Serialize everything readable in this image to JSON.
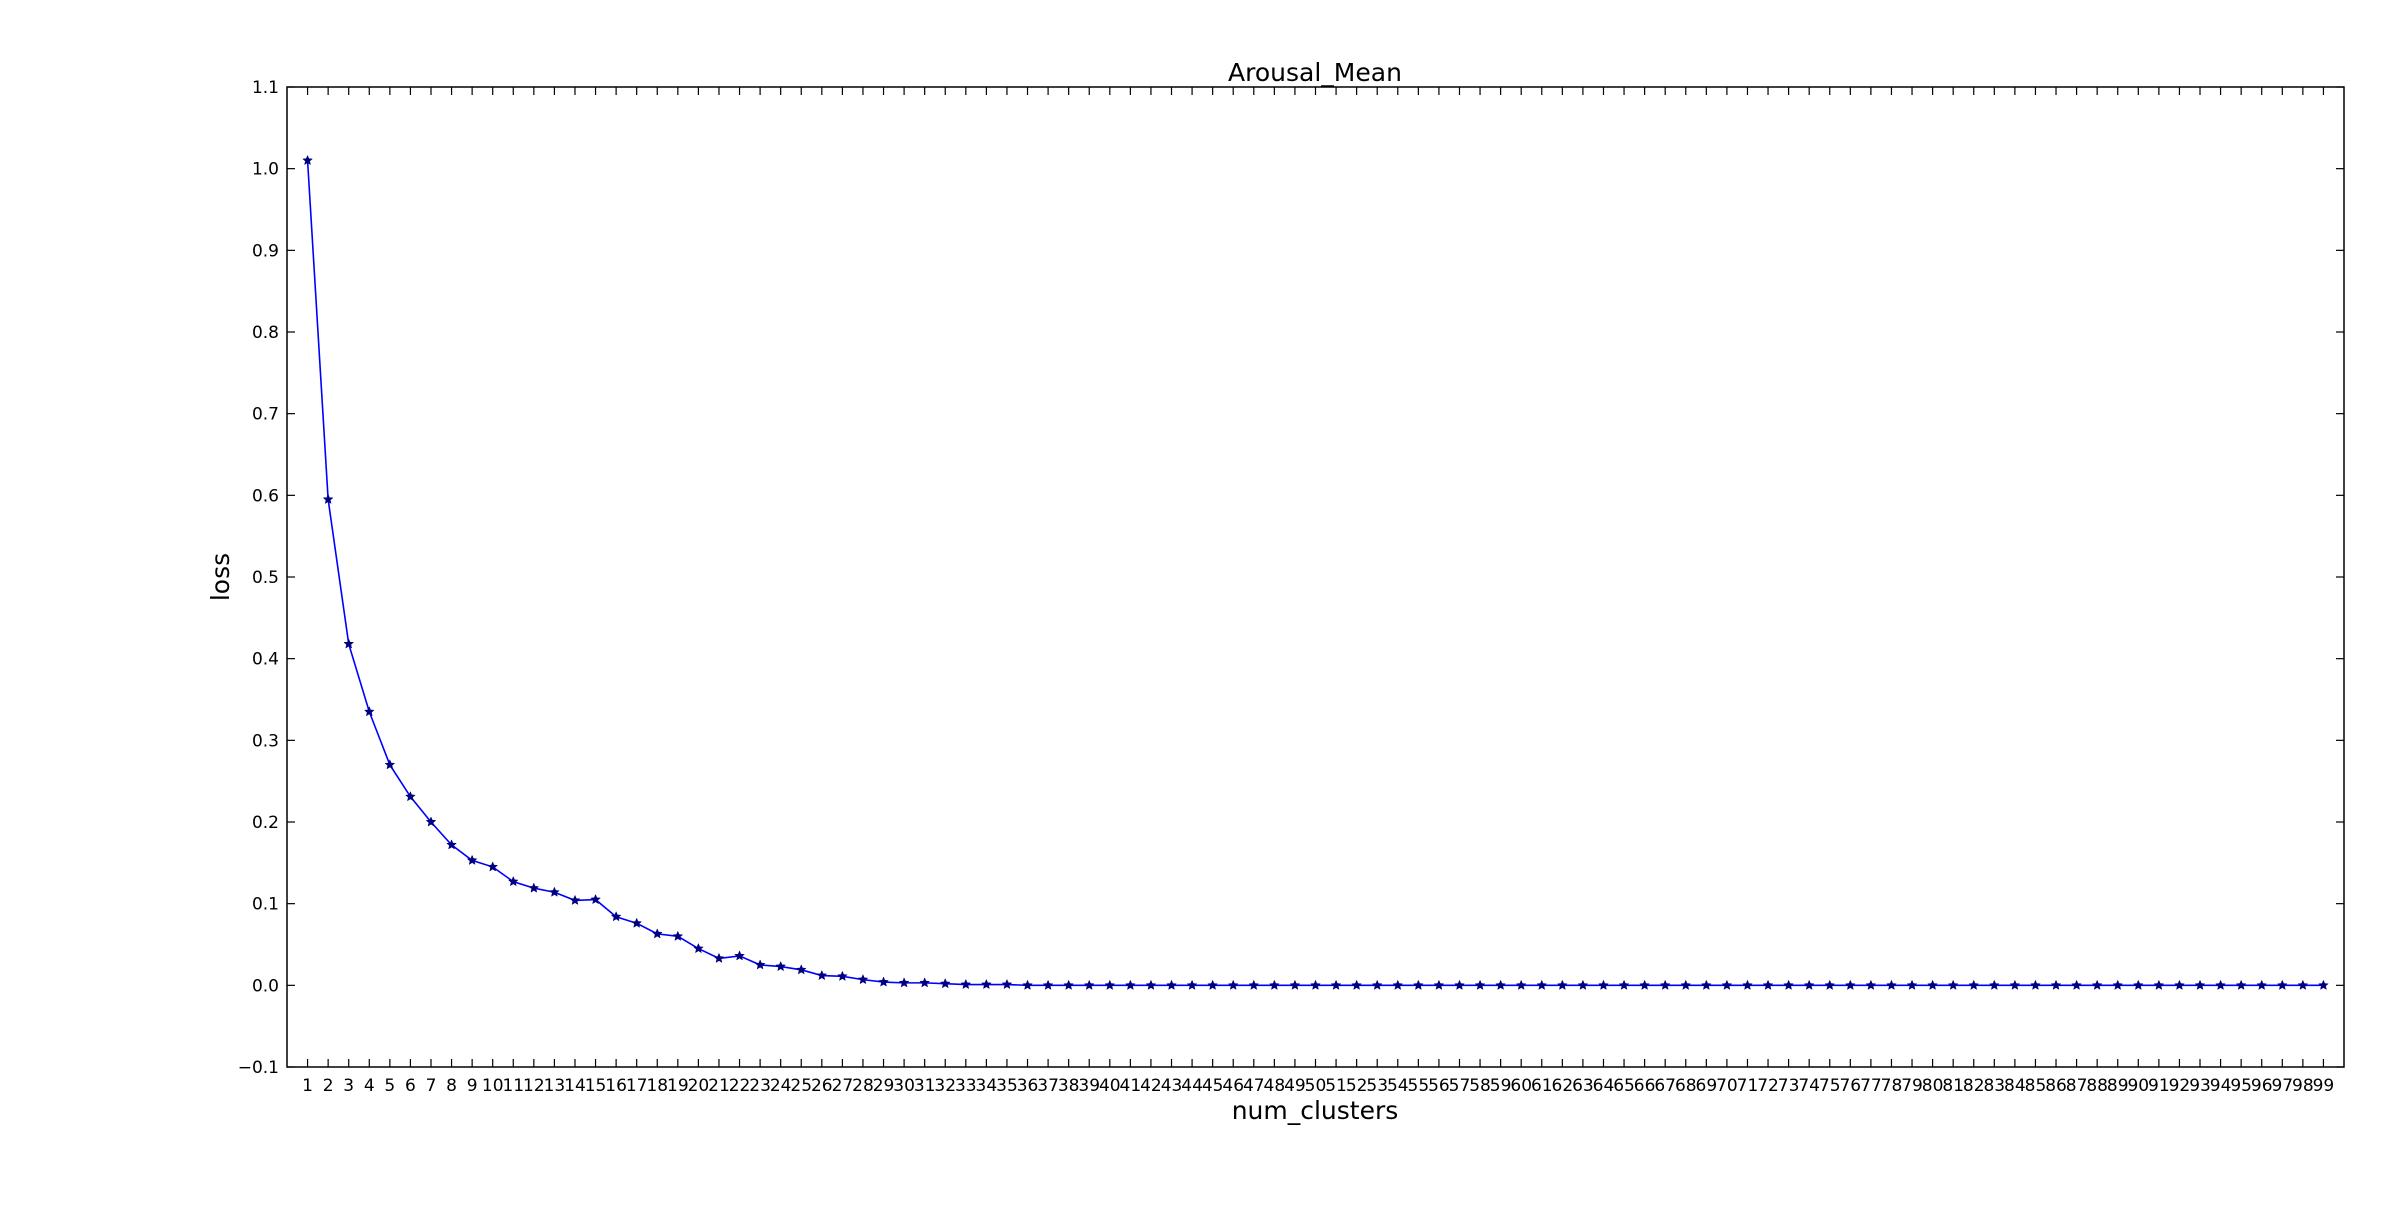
{
  "chart_data": {
    "type": "line",
    "title": "Arousal_Mean",
    "xlabel": "num_clusters",
    "ylabel": "loss",
    "xlim": [
      0,
      100
    ],
    "ylim": [
      -0.1,
      1.1
    ],
    "grid": false,
    "line_color": "#0000ff",
    "marker_color": "#00007f",
    "marker": "star",
    "y_ticks": [
      -0.1,
      0.0,
      0.1,
      0.2,
      0.3,
      0.4,
      0.5,
      0.6,
      0.7,
      0.8,
      0.9,
      1.0,
      1.1
    ],
    "y_tick_labels": [
      "−0.1",
      "0.0",
      "0.1",
      "0.2",
      "0.3",
      "0.4",
      "0.5",
      "0.6",
      "0.7",
      "0.8",
      "0.9",
      "1.0",
      "1.1"
    ],
    "x": [
      1,
      2,
      3,
      4,
      5,
      6,
      7,
      8,
      9,
      10,
      11,
      12,
      13,
      14,
      15,
      16,
      17,
      18,
      19,
      20,
      21,
      22,
      23,
      24,
      25,
      26,
      27,
      28,
      29,
      30,
      31,
      32,
      33,
      34,
      35,
      36,
      37,
      38,
      39,
      40,
      41,
      42,
      43,
      44,
      45,
      46,
      47,
      48,
      49,
      50,
      51,
      52,
      53,
      54,
      55,
      56,
      57,
      58,
      59,
      60,
      61,
      62,
      63,
      64,
      65,
      66,
      67,
      68,
      69,
      70,
      71,
      72,
      73,
      74,
      75,
      76,
      77,
      78,
      79,
      80,
      81,
      82,
      83,
      84,
      85,
      86,
      87,
      88,
      89,
      90,
      91,
      92,
      93,
      94,
      95,
      96,
      97,
      98,
      99
    ],
    "series": [
      {
        "values": [
          1.01,
          0.595,
          0.418,
          0.335,
          0.27,
          0.231,
          0.2,
          0.172,
          0.153,
          0.145,
          0.127,
          0.119,
          0.114,
          0.104,
          0.105,
          0.084,
          0.076,
          0.063,
          0.06,
          0.045,
          0.033,
          0.036,
          0.025,
          0.023,
          0.019,
          0.012,
          0.011,
          0.007,
          0.004,
          0.003,
          0.003,
          0.002,
          0.001,
          0.001,
          0.001,
          0.0,
          0.0,
          0.0,
          0.0,
          0.0,
          0.0,
          0.0,
          0.0,
          0.0,
          0.0,
          0.0,
          0.0,
          0.0,
          0.0,
          0.0,
          0.0,
          0.0,
          0.0,
          0.0,
          0.0,
          0.0,
          0.0,
          0.0,
          0.0,
          0.0,
          0.0,
          0.0,
          0.0,
          0.0,
          0.0,
          0.0,
          0.0,
          0.0,
          0.0,
          0.0,
          0.0,
          0.0,
          0.0,
          0.0,
          0.0,
          0.0,
          0.0,
          0.0,
          0.0,
          0.0,
          0.0,
          0.0,
          0.0,
          0.0,
          0.0,
          0.0,
          0.0,
          0.0,
          0.0,
          0.0,
          0.0,
          0.0,
          0.0,
          0.0,
          0.0,
          0.0,
          0.0,
          0.0,
          0.0
        ]
      }
    ]
  }
}
